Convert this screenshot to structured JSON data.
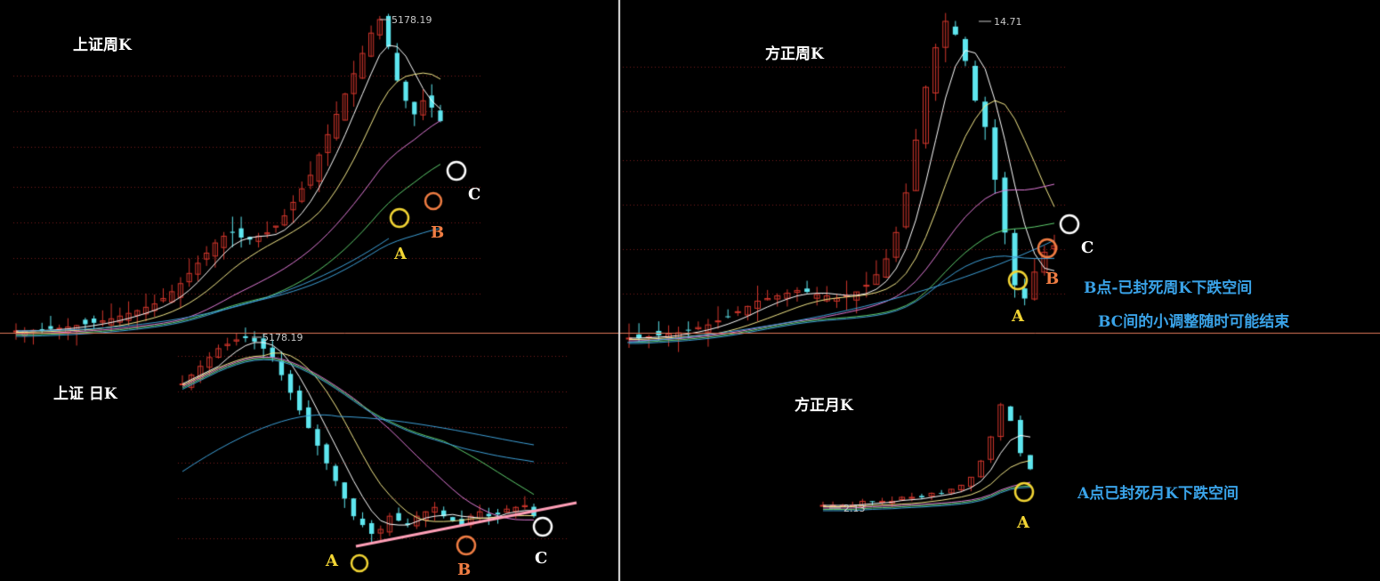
{
  "colors": {
    "bg": "#000000",
    "up": "#d2362c",
    "down": "#5ee6ef",
    "grid": "#7a1e1e",
    "divider": "#e8e8e8",
    "hline": "#e0785a",
    "trend": "#ff9fb7",
    "A": "#f2d534",
    "B": "#f07d43",
    "C": "#ffffff",
    "note": "#3aa3e8",
    "ma5": "#ffffff",
    "ma10": "#f5e98a",
    "ma20": "#e17bd8",
    "ma30": "#5fcf6e",
    "ma60": "#3ea0d8"
  },
  "panels": {
    "sh_weekly": {
      "title": "上证周K",
      "high_label": "5178.19",
      "points": {
        "A": "A",
        "B": "B",
        "C": "C"
      }
    },
    "sh_daily": {
      "title": "上证  日K",
      "high_label": "5178.19",
      "points": {
        "A": "A",
        "B": "B",
        "C": "C"
      }
    },
    "fz_weekly": {
      "title": "方正周K",
      "high_label": "14.71",
      "points": {
        "A": "A",
        "B": "B",
        "C": "C"
      }
    },
    "fz_monthly": {
      "title": "方正月K",
      "low_label": "2.13",
      "points": {
        "A": "A"
      }
    }
  },
  "notes": {
    "fz_weekly_1": "B点-已封死周K下跌空间",
    "fz_weekly_2": "BC间的小调整随时可能结束",
    "fz_monthly": "A点已封死月K下跌空间"
  },
  "chart_data": [
    {
      "type": "candlestick",
      "title": "上证周K",
      "high": 5178.19,
      "shape_closes": [
        60,
        60,
        61,
        62,
        63,
        64,
        66,
        68,
        70,
        72,
        75,
        78,
        82,
        86,
        90,
        95,
        100,
        108,
        118,
        130,
        145,
        160,
        175,
        190,
        200,
        205,
        198,
        195,
        200,
        205,
        215,
        230,
        250,
        270,
        290,
        320,
        350,
        380,
        410,
        440,
        470,
        500,
        520,
        480,
        430,
        400,
        380,
        400,
        390,
        370
      ]
    },
    {
      "type": "candlestick",
      "title": "上证  日K",
      "high": 5178.19,
      "shape_closes": [
        300,
        310,
        320,
        330,
        340,
        345,
        350,
        352,
        348,
        340,
        330,
        310,
        290,
        270,
        250,
        230,
        210,
        190,
        170,
        150,
        140,
        130,
        135,
        150,
        145,
        140,
        150,
        155,
        160,
        150,
        145,
        140,
        150,
        155,
        150,
        152,
        158,
        160,
        162,
        150
      ]
    },
    {
      "type": "candlestick",
      "title": "方正周K",
      "high": 14.71,
      "shape_closes": [
        20,
        20,
        21,
        22,
        23,
        24,
        26,
        28,
        30,
        33,
        36,
        40,
        44,
        48,
        50,
        52,
        54,
        56,
        55,
        53,
        52,
        50,
        52,
        55,
        60,
        68,
        80,
        100,
        130,
        170,
        210,
        240,
        260,
        250,
        230,
        200,
        180,
        140,
        100,
        60,
        50,
        70,
        85,
        90
      ]
    },
    {
      "type": "candlestick",
      "title": "方正月K",
      "low": 2.13,
      "shape_closes": [
        5,
        5,
        5,
        5,
        6,
        6,
        6,
        6,
        7,
        7,
        7,
        8,
        8,
        9,
        10,
        12,
        16,
        22,
        30,
        26,
        18,
        14
      ]
    }
  ]
}
